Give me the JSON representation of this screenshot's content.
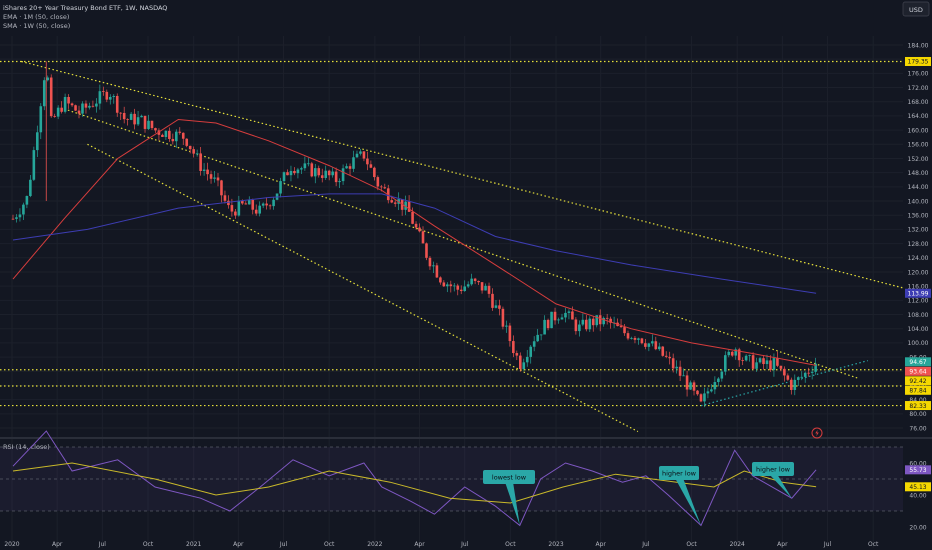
{
  "header": {
    "title": "iShares 20+ Year Treasury Bond ETF, 1W, NASDAQ",
    "ema_label": "EMA · 1M (50, close)",
    "sma_label": "SMA · 1W (50, close)",
    "currency": "USD"
  },
  "rsi": {
    "label": "RSI (14, close)",
    "ticks": [
      "60.00",
      "40.00",
      "20.00"
    ],
    "value_badges": [
      {
        "text": "55.73",
        "color": "#7e57c2"
      },
      {
        "text": "45.13",
        "color": "#f5d800"
      }
    ],
    "callouts": [
      "lowest low",
      "higher low",
      "higher low"
    ]
  },
  "colors": {
    "background": "#131722",
    "up": "#26a69a",
    "down": "#ef5350",
    "ema": "#d63d3d",
    "sma": "#3d3db3",
    "trendline": "#e6e03a",
    "support": "#2aa7a7",
    "rsi": "#7e57c2",
    "rsi_ma": "#c9b92a",
    "callout": "#2aa7a7"
  },
  "chart_data": {
    "type": "candlestick",
    "title": "iShares 20+ Year Treasury Bond ETF, 1W, NASDAQ",
    "ylim": [
      72,
      188
    ],
    "y_ticks": [
      76,
      80,
      84,
      88,
      92,
      96,
      100,
      104,
      108,
      112,
      116,
      120,
      124,
      128,
      132,
      136,
      140,
      144,
      148,
      152,
      156,
      160,
      164,
      168,
      172,
      176,
      180,
      184
    ],
    "x_labels": [
      "2020",
      "Apr",
      "Jul",
      "Oct",
      "2021",
      "Apr",
      "Jul",
      "Oct",
      "2022",
      "Apr",
      "Jul",
      "Oct",
      "2023",
      "Apr",
      "Jul",
      "Oct",
      "2024",
      "Apr",
      "Jul",
      "Oct"
    ],
    "x_range": [
      "2020-01-01",
      "2024-11-30"
    ],
    "price_badges": [
      {
        "text": "179.35",
        "value": 179.35,
        "color": "#f5d800"
      },
      {
        "text": "113.99",
        "value": 113.99,
        "color": "#3d3db3"
      },
      {
        "text": "94.67",
        "value": 94.67,
        "color": "#26a69a"
      },
      {
        "text": "93.64",
        "value": 93.64,
        "color": "#ef5350"
      },
      {
        "text": "92.42",
        "value": 92.42,
        "color": "#f5d800"
      },
      {
        "text": "87.84",
        "value": 87.84,
        "color": "#f5d800"
      },
      {
        "text": "82.33",
        "value": 82.33,
        "color": "#f5d800"
      }
    ],
    "horizontal_levels": [
      179.35,
      92.42,
      87.84,
      82.33
    ],
    "trendlines": [
      {
        "name": "upper channel",
        "from": [
          "2020-01-20",
          179.35
        ],
        "to": [
          "2024-11-30",
          115.5
        ],
        "color": "#e6e03a"
      },
      {
        "name": "middle channel",
        "from": [
          "2020-04-15",
          166
        ],
        "to": [
          "2024-09-01",
          90
        ],
        "color": "#e6e03a"
      },
      {
        "name": "lower channel",
        "from": [
          "2020-06-01",
          156
        ],
        "to": [
          "2023-06-15",
          75
        ],
        "color": "#e6e03a"
      },
      {
        "name": "rising support",
        "from": [
          "2023-10-20",
          82.3
        ],
        "to": [
          "2024-09-20",
          95
        ],
        "color": "#2aa7a7"
      }
    ],
    "series": [
      {
        "name": "weekly close",
        "kind": "close",
        "points": [
          [
            "2020-01-03",
            135
          ],
          [
            "2020-02-01",
            141
          ],
          [
            "2020-03-10",
            179.35
          ],
          [
            "2020-03-20",
            162
          ],
          [
            "2020-04-15",
            168
          ],
          [
            "2020-05-15",
            165
          ],
          [
            "2020-06-15",
            168
          ],
          [
            "2020-07-15",
            171
          ],
          [
            "2020-08-15",
            163
          ],
          [
            "2020-09-15",
            163
          ],
          [
            "2020-10-15",
            160
          ],
          [
            "2020-11-15",
            159
          ],
          [
            "2020-12-15",
            158
          ],
          [
            "2021-01-15",
            150
          ],
          [
            "2021-02-15",
            145
          ],
          [
            "2021-03-15",
            137
          ],
          [
            "2021-04-15",
            139
          ],
          [
            "2021-05-15",
            137
          ],
          [
            "2021-06-15",
            142
          ],
          [
            "2021-07-15",
            150
          ],
          [
            "2021-08-15",
            149
          ],
          [
            "2021-09-15",
            148
          ],
          [
            "2021-10-15",
            146
          ],
          [
            "2021-11-15",
            151
          ],
          [
            "2021-12-10",
            153
          ],
          [
            "2022-01-10",
            144
          ],
          [
            "2022-02-10",
            141
          ],
          [
            "2022-03-10",
            137
          ],
          [
            "2022-04-15",
            125
          ],
          [
            "2022-05-15",
            118
          ],
          [
            "2022-06-15",
            115
          ],
          [
            "2022-07-15",
            117
          ],
          [
            "2022-08-15",
            115
          ],
          [
            "2022-09-15",
            106
          ],
          [
            "2022-10-20",
            94
          ],
          [
            "2022-11-15",
            101
          ],
          [
            "2022-12-15",
            106
          ],
          [
            "2023-01-15",
            109
          ],
          [
            "2023-02-15",
            104
          ],
          [
            "2023-03-15",
            106
          ],
          [
            "2023-04-15",
            106
          ],
          [
            "2023-05-15",
            103
          ],
          [
            "2023-06-15",
            102
          ],
          [
            "2023-07-15",
            99
          ],
          [
            "2023-08-15",
            95
          ],
          [
            "2023-09-15",
            90
          ],
          [
            "2023-10-20",
            82.3
          ],
          [
            "2023-11-15",
            90
          ],
          [
            "2023-12-27",
            99
          ],
          [
            "2024-01-15",
            95
          ],
          [
            "2024-02-15",
            94
          ],
          [
            "2024-03-15",
            94
          ],
          [
            "2024-04-20",
            88
          ],
          [
            "2024-05-15",
            91
          ],
          [
            "2024-06-08",
            94.67
          ]
        ]
      },
      {
        "name": "EMA · 1M (50, close)",
        "kind": "ema",
        "points": [
          [
            "2020-01-03",
            118
          ],
          [
            "2020-04-15",
            135
          ],
          [
            "2020-08-01",
            152
          ],
          [
            "2020-12-01",
            163
          ],
          [
            "2021-02-15",
            162
          ],
          [
            "2021-06-01",
            157
          ],
          [
            "2021-10-01",
            150
          ],
          [
            "2022-01-15",
            143
          ],
          [
            "2022-05-01",
            133
          ],
          [
            "2022-09-01",
            122
          ],
          [
            "2023-01-01",
            111
          ],
          [
            "2023-06-01",
            104
          ],
          [
            "2023-10-01",
            100
          ],
          [
            "2024-02-01",
            97
          ],
          [
            "2024-06-08",
            93.64
          ]
        ]
      },
      {
        "name": "SMA · 1W (50, close)",
        "kind": "sma",
        "points": [
          [
            "2020-01-03",
            129
          ],
          [
            "2020-06-01",
            132
          ],
          [
            "2020-12-01",
            138
          ],
          [
            "2021-06-01",
            141
          ],
          [
            "2021-10-01",
            142
          ],
          [
            "2022-01-15",
            142
          ],
          [
            "2022-05-01",
            138
          ],
          [
            "2022-09-01",
            130
          ],
          [
            "2023-01-01",
            126
          ],
          [
            "2023-06-01",
            122
          ],
          [
            "2023-12-01",
            118
          ],
          [
            "2024-06-08",
            113.99
          ]
        ]
      },
      {
        "name": "RSI (14, close)",
        "kind": "rsi",
        "points": [
          [
            "2020-01-03",
            58
          ],
          [
            "2020-03-10",
            80
          ],
          [
            "2020-05-01",
            55
          ],
          [
            "2020-08-01",
            62
          ],
          [
            "2020-10-15",
            45
          ],
          [
            "2021-01-15",
            38
          ],
          [
            "2021-03-15",
            30
          ],
          [
            "2021-05-15",
            45
          ],
          [
            "2021-07-20",
            62
          ],
          [
            "2021-10-01",
            52
          ],
          [
            "2021-12-10",
            60
          ],
          [
            "2022-01-15",
            45
          ],
          [
            "2022-03-15",
            36
          ],
          [
            "2022-05-01",
            28
          ],
          [
            "2022-07-01",
            45
          ],
          [
            "2022-09-01",
            33
          ],
          [
            "2022-10-20",
            21
          ],
          [
            "2022-12-01",
            50
          ],
          [
            "2023-01-20",
            60
          ],
          [
            "2023-03-15",
            55
          ],
          [
            "2023-05-15",
            48
          ],
          [
            "2023-07-01",
            52
          ],
          [
            "2023-08-15",
            40
          ],
          [
            "2023-10-20",
            21
          ],
          [
            "2023-12-27",
            68
          ],
          [
            "2024-02-01",
            52
          ],
          [
            "2024-04-20",
            38
          ],
          [
            "2024-06-08",
            55.73
          ]
        ]
      },
      {
        "name": "RSI MA",
        "kind": "rsi_ma",
        "points": [
          [
            "2020-01-03",
            55
          ],
          [
            "2020-05-01",
            60
          ],
          [
            "2020-10-15",
            50
          ],
          [
            "2021-02-15",
            40
          ],
          [
            "2021-06-01",
            45
          ],
          [
            "2021-10-01",
            55
          ],
          [
            "2022-02-01",
            48
          ],
          [
            "2022-06-01",
            38
          ],
          [
            "2022-10-01",
            35
          ],
          [
            "2023-01-15",
            45
          ],
          [
            "2023-05-01",
            53
          ],
          [
            "2023-09-01",
            48
          ],
          [
            "2023-11-15",
            45
          ],
          [
            "2024-01-15",
            55
          ],
          [
            "2024-04-01",
            48
          ],
          [
            "2024-06-08",
            45.13
          ]
        ]
      }
    ]
  }
}
